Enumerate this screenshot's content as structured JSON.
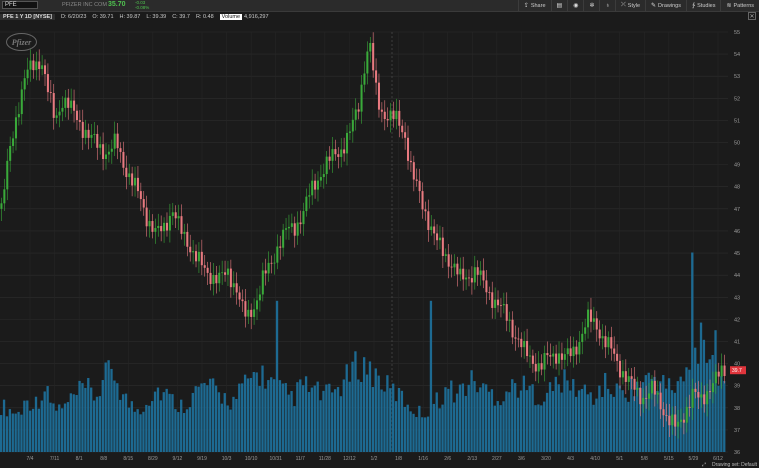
{
  "toolbar": {
    "symbol": "PFE",
    "company": "PFIZER INC COM",
    "last": "35.70",
    "change_line1": "-0.03",
    "change_line2": "-0.08%",
    "buttons": [
      {
        "label": "Share",
        "icon": "share-icon",
        "glyph": "⇪"
      },
      {
        "label": "",
        "icon": "printer-icon",
        "glyph": "▤"
      },
      {
        "label": "",
        "icon": "camera-icon",
        "glyph": "◉"
      },
      {
        "label": "",
        "icon": "gear-icon",
        "glyph": "✲"
      },
      {
        "label": "",
        "icon": "flask-icon",
        "glyph": "♁"
      },
      {
        "label": "Style",
        "icon": "chart-style-icon",
        "glyph": "⤫"
      },
      {
        "label": "Drawings",
        "icon": "pencil-icon",
        "glyph": "✎"
      },
      {
        "label": "Studies",
        "icon": "studies-icon",
        "glyph": "∱"
      },
      {
        "label": "Patterns",
        "icon": "patterns-icon",
        "glyph": "≋"
      }
    ]
  },
  "infobar": {
    "label": "PFE 1 Y 1D [NYSE]",
    "date": "D: 6/20/23",
    "open": "O: 39.71",
    "high": "H: 39.87",
    "low": "L: 39.39",
    "close": "C: 39.7",
    "range": "R: 0.48",
    "vol_label": "Volume",
    "vol_value": "4,916,297"
  },
  "logo": "Pfizer",
  "chart_data": {
    "type": "candlestick",
    "price_axis": {
      "min": 36,
      "max": 55,
      "ticks": [
        36,
        37,
        38,
        39,
        40,
        41,
        42,
        43,
        44,
        45,
        46,
        47,
        48,
        49,
        50,
        51,
        52,
        53,
        54,
        55
      ]
    },
    "current_price_label": "39.7",
    "x_tick_labels": [
      "7/4",
      "7/11",
      "8/1",
      "8/8",
      "8/15",
      "8/29",
      "9/12",
      "9/19",
      "10/3",
      "10/10",
      "10/31",
      "11/7",
      "11/28",
      "12/12",
      "1/2",
      "1/8",
      "1/16",
      "2/6",
      "2/13",
      "2/27",
      "3/6",
      "3/20",
      "4/3",
      "4/10",
      "5/1",
      "5/8",
      "5/15",
      "5/29",
      "6/12"
    ],
    "price_path": [
      [
        0,
        47.0
      ],
      [
        3,
        49.5
      ],
      [
        6,
        51.5
      ],
      [
        9,
        53.0
      ],
      [
        12,
        53.5
      ],
      [
        15,
        53.8
      ],
      [
        17,
        52.5
      ],
      [
        20,
        51.0
      ],
      [
        23,
        52.0
      ],
      [
        26,
        51.5
      ],
      [
        29,
        51.0
      ],
      [
        33,
        50.2
      ],
      [
        37,
        49.8
      ],
      [
        40,
        49.5
      ],
      [
        43,
        50.0
      ],
      [
        46,
        49.0
      ],
      [
        49,
        48.2
      ],
      [
        52,
        47.5
      ],
      [
        55,
        46.5
      ],
      [
        58,
        45.8
      ],
      [
        61,
        46.2
      ],
      [
        64,
        47.0
      ],
      [
        67,
        46.0
      ],
      [
        70,
        45.5
      ],
      [
        73,
        44.8
      ],
      [
        76,
        44.2
      ],
      [
        79,
        44.0
      ],
      [
        82,
        43.8
      ],
      [
        85,
        44.1
      ],
      [
        88,
        43.5
      ],
      [
        90,
        42.5
      ],
      [
        92,
        42.0
      ],
      [
        94,
        42.5
      ],
      [
        96,
        43.0
      ],
      [
        98,
        43.8
      ],
      [
        101,
        44.5
      ],
      [
        104,
        45.5
      ],
      [
        107,
        46.0
      ],
      [
        110,
        46.2
      ],
      [
        113,
        46.8
      ],
      [
        116,
        47.8
      ],
      [
        119,
        48.5
      ],
      [
        122,
        49.0
      ],
      [
        125,
        49.5
      ],
      [
        128,
        49.8
      ],
      [
        131,
        50.5
      ],
      [
        134,
        51.8
      ],
      [
        136,
        53.5
      ],
      [
        138,
        54.5
      ],
      [
        140,
        52.5
      ],
      [
        142,
        51.5
      ],
      [
        145,
        51.2
      ],
      [
        148,
        51.0
      ],
      [
        151,
        50.5
      ],
      [
        154,
        48.5
      ],
      [
        157,
        47.5
      ],
      [
        160,
        46.5
      ],
      [
        163,
        45.5
      ],
      [
        166,
        45.0
      ],
      [
        169,
        44.5
      ],
      [
        172,
        43.8
      ],
      [
        175,
        44.0
      ],
      [
        178,
        44.2
      ],
      [
        181,
        43.5
      ],
      [
        184,
        43.0
      ],
      [
        187,
        42.5
      ],
      [
        190,
        42.0
      ],
      [
        193,
        41.2
      ],
      [
        196,
        40.5
      ],
      [
        199,
        40.2
      ],
      [
        202,
        39.8
      ],
      [
        205,
        40.3
      ],
      [
        208,
        40.5
      ],
      [
        211,
        40.2
      ],
      [
        214,
        40.5
      ],
      [
        217,
        41.2
      ],
      [
        220,
        42.0
      ],
      [
        223,
        41.8
      ],
      [
        226,
        41.0
      ],
      [
        229,
        40.5
      ],
      [
        232,
        39.8
      ],
      [
        235,
        39.2
      ],
      [
        238,
        38.7
      ],
      [
        241,
        38.5
      ],
      [
        244,
        38.8
      ],
      [
        247,
        38.2
      ],
      [
        250,
        37.5
      ],
      [
        253,
        37.0
      ],
      [
        256,
        37.8
      ],
      [
        259,
        38.6
      ],
      [
        262,
        38.3
      ],
      [
        265,
        38.9
      ],
      [
        268,
        39.3
      ],
      [
        271,
        39.7
      ]
    ],
    "volume_profile": [
      0.22,
      0.2,
      0.18,
      0.25,
      0.23,
      0.3,
      0.22,
      0.2,
      0.24,
      0.28,
      0.3,
      0.26,
      0.35,
      0.4,
      0.28,
      0.22,
      0.2,
      0.25,
      0.3,
      0.28,
      0.24,
      0.22,
      0.26,
      0.3,
      0.32,
      0.28,
      0.26,
      0.24,
      0.3,
      0.35,
      0.38,
      0.34,
      0.3,
      0.28,
      0.26,
      0.32,
      0.3,
      0.28,
      0.27,
      0.3,
      0.34,
      0.4,
      0.42,
      0.38,
      0.35,
      0.3,
      0.28,
      0.24,
      0.2,
      0.18,
      0.22,
      0.26,
      0.3,
      0.28,
      0.32,
      0.34,
      0.3,
      0.28,
      0.26,
      0.3,
      0.32,
      0.3,
      0.28,
      0.26,
      0.3,
      0.34,
      0.32,
      0.3,
      0.28,
      0.26,
      0.32,
      0.3,
      0.28,
      0.3,
      0.32,
      0.34,
      0.36,
      0.32,
      0.3,
      0.34,
      0.38,
      0.6,
      0.5,
      0.4,
      0.35
    ]
  },
  "statusbar": {
    "drawing_set": "Drawing set: Default"
  }
}
